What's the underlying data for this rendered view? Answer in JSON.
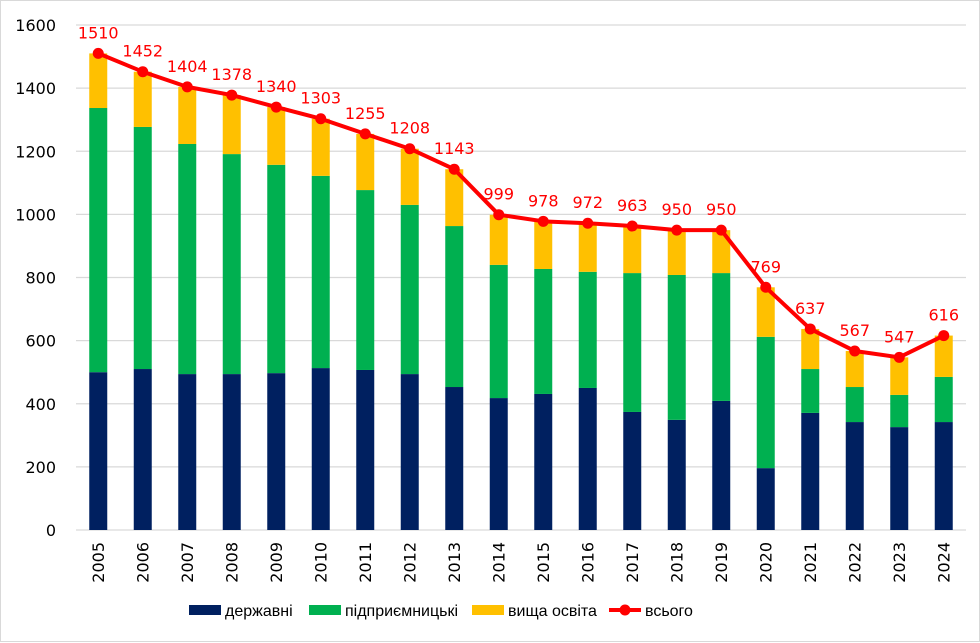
{
  "chart_data": {
    "type": "bar",
    "subtype": "stacked-bar-with-line",
    "title": "",
    "xlabel": "",
    "ylabel": "",
    "ylim": [
      0,
      1600
    ],
    "yticks": [
      0,
      200,
      400,
      600,
      800,
      1000,
      1200,
      1400,
      1600
    ],
    "grid": true,
    "legend_position": "bottom",
    "categories": [
      "2005",
      "2006",
      "2007",
      "2008",
      "2009",
      "2010",
      "2011",
      "2012",
      "2013",
      "2014",
      "2015",
      "2016",
      "2017",
      "2018",
      "2019",
      "2020",
      "2021",
      "2022",
      "2023",
      "2024"
    ],
    "series": [
      {
        "name": "державні",
        "kind": "bar",
        "color": "#002060",
        "values": [
          500,
          510,
          494,
          494,
          497,
          513,
          507,
          494,
          453,
          418,
          431,
          450,
          374,
          349,
          409,
          196,
          371,
          342,
          326,
          342
        ]
      },
      {
        "name": "підприємницькі",
        "kind": "bar",
        "color": "#00b050",
        "values": [
          837,
          767,
          729,
          697,
          660,
          609,
          570,
          536,
          510,
          422,
          396,
          368,
          440,
          459,
          405,
          416,
          139,
          111,
          102,
          143
        ]
      },
      {
        "name": "вища освіта",
        "kind": "bar",
        "color": "#ffc000",
        "values": [
          173,
          175,
          181,
          187,
          183,
          181,
          178,
          178,
          180,
          159,
          151,
          154,
          149,
          142,
          136,
          157,
          127,
          114,
          119,
          131
        ]
      },
      {
        "name": "всього",
        "kind": "line",
        "color": "#ff0000",
        "values": [
          1510,
          1452,
          1404,
          1378,
          1340,
          1303,
          1255,
          1208,
          1143,
          999,
          978,
          972,
          963,
          950,
          950,
          769,
          637,
          567,
          547,
          616
        ]
      }
    ]
  }
}
